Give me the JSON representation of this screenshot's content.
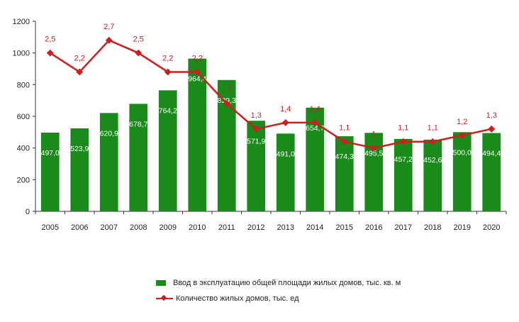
{
  "chart_data": {
    "type": "bar",
    "categories": [
      "2005",
      "2006",
      "2007",
      "2008",
      "2009",
      "2010",
      "2011",
      "2012",
      "2013",
      "2014",
      "2015",
      "2016",
      "2017",
      "2018",
      "2019",
      "2020"
    ],
    "series": [
      {
        "name": "Ввод в эксплуатацию общей площади жилых домов, тыс. кв. м",
        "type": "bar",
        "values": [
          497.0,
          523.9,
          620.9,
          678.7,
          764.2,
          964.4,
          829.3,
          571.9,
          491.0,
          654.7,
          474.3,
          495.5,
          457.2,
          452.6,
          500.0,
          494.4
        ],
        "labels": [
          "497,0",
          "523,9",
          "620,9",
          "678,7",
          "764,2",
          "964,4",
          "829,3",
          "571,9",
          "491,0",
          "654,7",
          "474,3",
          "495,5",
          "457,2",
          "452,6",
          "500,0",
          "494,4"
        ],
        "color": "#1a8a1a",
        "label_color": "#ffffff"
      },
      {
        "name": "Количество жилых домов, тыс. ед",
        "type": "line",
        "values": [
          2.5,
          2.2,
          2.7,
          2.5,
          2.2,
          2.2,
          1.7,
          1.3,
          1.4,
          1.4,
          1.1,
          1.0,
          1.1,
          1.1,
          1.2,
          1.3
        ],
        "labels": [
          "2,5",
          "2,2",
          "2,7",
          "2,5",
          "2,2",
          "2,2",
          "1,7",
          "1,3",
          "1,4",
          "1,4",
          "1,1",
          "1",
          "1,1",
          "1,1",
          "1,2",
          "1,3"
        ],
        "color": "#cc1f1f",
        "label_color": "#cc1f1f"
      }
    ],
    "ylim": [
      0,
      1200
    ],
    "yticks": [
      "0",
      "200",
      "400",
      "600",
      "800",
      "1000",
      "1200"
    ],
    "y2lim": [
      0,
      3
    ],
    "grid": false,
    "legend_position": "bottom"
  },
  "legend": {
    "bar_label": "Ввод в эксплуатацию общей площади жилых домов, тыс. кв. м",
    "line_label": "Количество жилых домов, тыс. ед"
  }
}
